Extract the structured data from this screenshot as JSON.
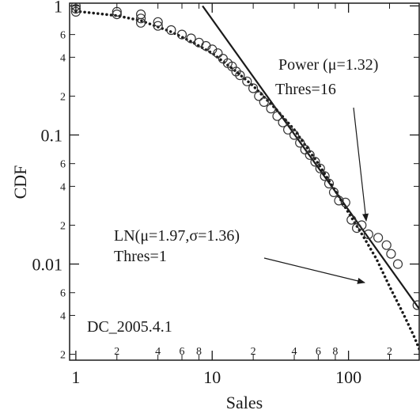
{
  "chart_data": {
    "type": "scatter",
    "xlabel": "Sales",
    "ylabel": "CDF",
    "xscale": "log",
    "yscale": "log",
    "xlim": [
      0.9,
      330
    ],
    "ylim": [
      0.0018,
      1.05
    ],
    "x_major_ticks": [
      {
        "v": 1,
        "label": "1"
      },
      {
        "v": 10,
        "label": "10"
      },
      {
        "v": 100,
        "label": "100"
      }
    ],
    "x_minor_ticks": [
      {
        "v": 2,
        "label": "2"
      },
      {
        "v": 4,
        "label": "4"
      },
      {
        "v": 6,
        "label": "6"
      },
      {
        "v": 8,
        "label": "8"
      },
      {
        "v": 20,
        "label": "2"
      },
      {
        "v": 40,
        "label": "4"
      },
      {
        "v": 60,
        "label": "6"
      },
      {
        "v": 80,
        "label": "8"
      },
      {
        "v": 200,
        "label": "2"
      }
    ],
    "y_major_ticks": [
      {
        "v": 1,
        "label": "1"
      },
      {
        "v": 0.1,
        "label": "0.1"
      },
      {
        "v": 0.01,
        "label": "0.01"
      }
    ],
    "y_minor_ticks": [
      {
        "v": 0.6,
        "label": "6"
      },
      {
        "v": 0.4,
        "label": "4"
      },
      {
        "v": 0.2,
        "label": "2"
      },
      {
        "v": 0.06,
        "label": "6"
      },
      {
        "v": 0.04,
        "label": "4"
      },
      {
        "v": 0.02,
        "label": "2"
      },
      {
        "v": 0.006,
        "label": "6"
      },
      {
        "v": 0.004,
        "label": "4"
      },
      {
        "v": 0.002,
        "label": "2"
      }
    ],
    "series": [
      {
        "marker": "circle-open",
        "points": [
          [
            1,
            1.0
          ],
          [
            1,
            0.95
          ],
          [
            1,
            0.9
          ],
          [
            2,
            0.9
          ],
          [
            2,
            0.86
          ],
          [
            3,
            0.86
          ],
          [
            3,
            0.8
          ],
          [
            3,
            0.74
          ],
          [
            4,
            0.75
          ],
          [
            4,
            0.7
          ],
          [
            5,
            0.65
          ],
          [
            6,
            0.6
          ],
          [
            7,
            0.56
          ],
          [
            8,
            0.52
          ],
          [
            9,
            0.49
          ],
          [
            10,
            0.46
          ],
          [
            11,
            0.43
          ],
          [
            12,
            0.39
          ],
          [
            13,
            0.36
          ],
          [
            14,
            0.34
          ],
          [
            15,
            0.31
          ],
          [
            16,
            0.29
          ],
          [
            18,
            0.26
          ],
          [
            20,
            0.23
          ],
          [
            22,
            0.2
          ],
          [
            24,
            0.18
          ],
          [
            27,
            0.16
          ],
          [
            30,
            0.14
          ],
          [
            33,
            0.125
          ],
          [
            36,
            0.11
          ],
          [
            40,
            0.1
          ],
          [
            44,
            0.087
          ],
          [
            48,
            0.077
          ],
          [
            52,
            0.07
          ],
          [
            57,
            0.062
          ],
          [
            62,
            0.055
          ],
          [
            67,
            0.048
          ],
          [
            72,
            0.042
          ],
          [
            78,
            0.036
          ],
          [
            85,
            0.031
          ],
          [
            95,
            0.03
          ],
          [
            105,
            0.022
          ],
          [
            115,
            0.019
          ],
          [
            125,
            0.02
          ],
          [
            140,
            0.017
          ],
          [
            165,
            0.016
          ],
          [
            190,
            0.014
          ],
          [
            205,
            0.012
          ],
          [
            230,
            0.01
          ],
          [
            320,
            0.0048
          ]
        ]
      },
      {
        "name": "LN(μ=1.97,σ=1.36)",
        "style": "dotted",
        "points": [
          [
            1,
            0.91
          ],
          [
            2,
            0.84
          ],
          [
            3,
            0.77
          ],
          [
            5,
            0.63
          ],
          [
            7,
            0.53
          ],
          [
            10,
            0.43
          ],
          [
            15,
            0.31
          ],
          [
            20,
            0.24
          ],
          [
            30,
            0.155
          ],
          [
            40,
            0.11
          ],
          [
            60,
            0.06
          ],
          [
            80,
            0.037
          ],
          [
            100,
            0.025
          ],
          [
            130,
            0.016
          ],
          [
            160,
            0.011
          ],
          [
            200,
            0.0067
          ],
          [
            250,
            0.0042
          ],
          [
            300,
            0.0028
          ],
          [
            330,
            0.0022
          ]
        ]
      },
      {
        "name": "Power (μ=1.32)",
        "style": "solid",
        "points": [
          [
            8.5,
            1.0
          ],
          [
            330,
            0.0045
          ]
        ]
      }
    ],
    "annotations": [
      {
        "text": "Power (μ=1.32)",
        "points_to": [
          150,
          0.021
        ]
      },
      {
        "text": "Thres=16"
      },
      {
        "text": "LN(μ=1.97,σ=1.36)",
        "points_to": [
          200,
          0.006
        ]
      },
      {
        "text": "Thres=1"
      },
      {
        "text": "DC_2005.4.1"
      }
    ]
  }
}
